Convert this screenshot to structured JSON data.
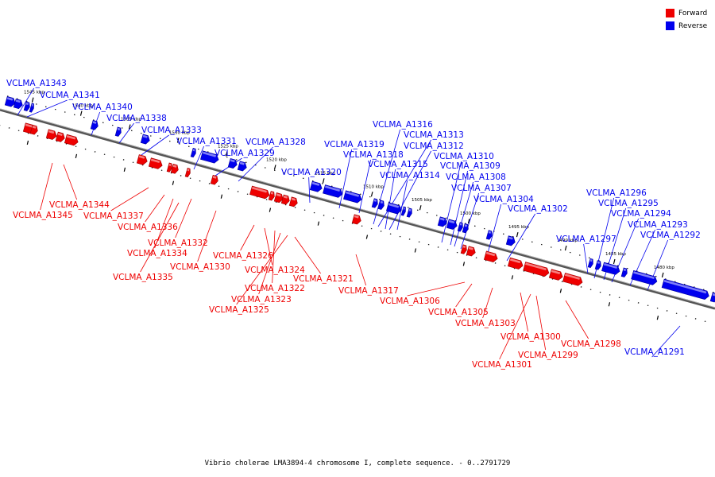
{
  "colors": {
    "forward": "#ee0000",
    "reverse": "#0000ee",
    "backbone": "#888888"
  },
  "legend": [
    {
      "label": "Forward",
      "color": "#ee0000"
    },
    {
      "label": "Reverse",
      "color": "#0000ee"
    }
  ],
  "caption": "Vibrio cholerae LMA3894-4 chromosome I, complete sequence. - 0..2791729",
  "ticks": [
    "1545 kbp",
    "1540 kbp",
    "1535 kbp",
    "1530 kbp",
    "1525 kbp",
    "1520 kbp",
    "1515 kbp",
    "1510 kbp",
    "1505 kbp",
    "1500 kbp",
    "1495 kbp",
    "1490 kbp",
    "1485 kbp",
    "1480 kbp"
  ],
  "reverse_genes": [
    "VCLMA_A1343",
    "VCLMA_A1341",
    "VCLMA_A1340",
    "VCLMA_A1338",
    "VCLMA_A1333",
    "VCLMA_A1331",
    "VCLMA_A1328",
    "VCLMA_A1329",
    "VCLMA_A1320",
    "VCLMA_A1319",
    "VCLMA_A1318",
    "VCLMA_A1316",
    "VCLMA_A1313",
    "VCLMA_A1312",
    "VCLMA_A1315",
    "VCLMA_A1314",
    "VCLMA_A1310",
    "VCLMA_A1309",
    "VCLMA_A1308",
    "VCLMA_A1307",
    "VCLMA_A1304",
    "VCLMA_A1302",
    "VCLMA_A1297",
    "VCLMA_A1296",
    "VCLMA_A1295",
    "VCLMA_A1294",
    "VCLMA_A1293",
    "VCLMA_A1292",
    "VCLMA_A1291"
  ],
  "forward_genes": [
    "VCLMA_A1345",
    "VCLMA_A1344",
    "VCLMA_A1337",
    "VCLMA_A1336",
    "VCLMA_A1334",
    "VCLMA_A1335",
    "VCLMA_A1332",
    "VCLMA_A1330",
    "VCLMA_A1326",
    "VCLMA_A1324",
    "VCLMA_A1322",
    "VCLMA_A1323",
    "VCLMA_A1325",
    "VCLMA_A1321",
    "VCLMA_A1317",
    "VCLMA_A1306",
    "VCLMA_A1305",
    "VCLMA_A1303",
    "VCLMA_A1300",
    "VCLMA_A1299",
    "VCLMA_A1301",
    "VCLMA_A1298"
  ]
}
